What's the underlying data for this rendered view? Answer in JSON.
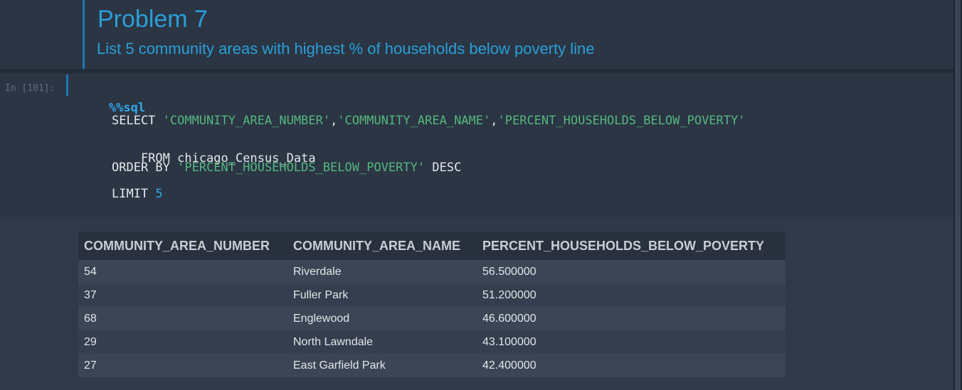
{
  "markdown_cell": {
    "title": "Problem 7",
    "subtitle": "List 5 community areas with highest % of households below poverty line"
  },
  "code_cell": {
    "prompt": "In [101]:",
    "magic": "%%sql",
    "line1_kw": "SELECT ",
    "line1_str1": "'COMMUNITY_AREA_NUMBER'",
    "line1_comma1": ",",
    "line1_str2": "'COMMUNITY_AREA_NAME'",
    "line1_comma2": ",",
    "line1_str3": "'PERCENT_HOUSEHOLDS_BELOW_POVERTY'",
    "line2": "FROM chicago_Census_Data",
    "line3_kw": "ORDER BY ",
    "line3_str": "'PERCENT_HOUSEHOLDS_BELOW_POVERTY'",
    "line3_tail": " DESC",
    "line4_kw": "LIMIT ",
    "line4_num": "5"
  },
  "colors": {
    "accent": "#2a9fd6",
    "string": "#55b77e",
    "background": "#2b3544"
  },
  "result_table": {
    "headers": [
      "COMMUNITY_AREA_NUMBER",
      "COMMUNITY_AREA_NAME",
      "PERCENT_HOUSEHOLDS_BELOW_POVERTY"
    ],
    "rows": [
      [
        "54",
        "Riverdale",
        "56.500000"
      ],
      [
        "37",
        "Fuller Park",
        "51.200000"
      ],
      [
        "68",
        "Englewood",
        "46.600000"
      ],
      [
        "29",
        "North Lawndale",
        "43.100000"
      ],
      [
        "27",
        "East Garfield Park",
        "42.400000"
      ]
    ]
  }
}
